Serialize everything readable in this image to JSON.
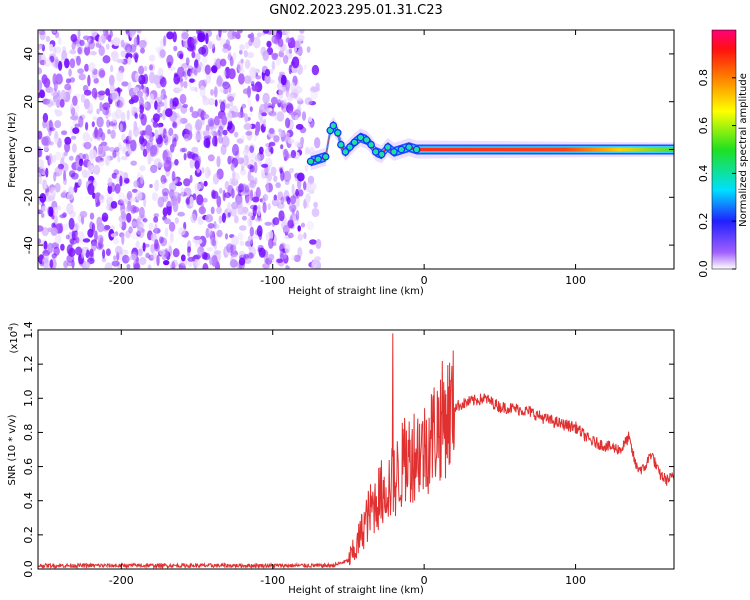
{
  "title": "GN02.2023.295.01.31.C23",
  "chart_data": [
    {
      "type": "heatmap",
      "xlabel": "Height of straight line (km)",
      "ylabel": "Frequency (Hz)",
      "xlim": [
        -255,
        165
      ],
      "ylim": [
        -50,
        50
      ],
      "x_ticks": [
        -200,
        -100,
        0,
        100
      ],
      "y_ticks": [
        -40,
        -20,
        0,
        20,
        40
      ],
      "noise_region_x": [
        -255,
        -75
      ],
      "carrier": {
        "steady_from_x": 0,
        "steady_frequency": 0,
        "scatter_points": [
          [
            -75,
            -5
          ],
          [
            -70,
            -4
          ],
          [
            -65,
            -3
          ],
          [
            -62,
            8
          ],
          [
            -60,
            10
          ],
          [
            -57,
            7
          ],
          [
            -55,
            2
          ],
          [
            -52,
            -1
          ],
          [
            -49,
            1
          ],
          [
            -46,
            3
          ],
          [
            -42,
            5
          ],
          [
            -38,
            4
          ],
          [
            -35,
            2
          ],
          [
            -32,
            -1
          ],
          [
            -28,
            -2
          ],
          [
            -24,
            1
          ],
          [
            -20,
            -1
          ],
          [
            -15,
            0
          ],
          [
            -10,
            1
          ],
          [
            -5,
            0
          ]
        ]
      },
      "colorbar": {
        "label": "Normalized spectral amplitude",
        "range": [
          0.0,
          1.0
        ],
        "ticks": [
          0.0,
          0.2,
          0.4,
          0.6,
          0.8
        ]
      }
    },
    {
      "type": "line",
      "xlabel": "Height of straight line (km)",
      "ylabel": "SNR (10 * v/v)",
      "y_multiplier": "(x10",
      "y_multiplier_exp": "4",
      "xlim": [
        -255,
        165
      ],
      "ylim": [
        0.0,
        1.4
      ],
      "x_ticks": [
        -200,
        -100,
        0,
        100
      ],
      "y_ticks": [
        0.0,
        0.2,
        0.4,
        0.6,
        0.8,
        1.0,
        1.2,
        1.4
      ],
      "series": [
        {
          "name": "SNR",
          "color": "#e03030",
          "x": [
            -255,
            -200,
            -150,
            -100,
            -70,
            -60,
            -50,
            -45,
            -40,
            -35,
            -30,
            -25,
            -20,
            -15,
            -10,
            -5,
            0,
            5,
            10,
            15,
            20,
            30,
            40,
            50,
            60,
            70,
            80,
            90,
            100,
            110,
            120,
            130,
            135,
            140,
            145,
            150,
            155,
            160,
            165
          ],
          "values": [
            0.02,
            0.02,
            0.02,
            0.02,
            0.02,
            0.02,
            0.05,
            0.12,
            0.25,
            0.35,
            0.42,
            0.48,
            0.5,
            0.6,
            0.65,
            0.7,
            0.7,
            0.78,
            0.85,
            0.9,
            0.95,
            0.98,
            1.0,
            0.95,
            0.94,
            0.92,
            0.88,
            0.85,
            0.83,
            0.75,
            0.72,
            0.7,
            0.77,
            0.6,
            0.58,
            0.68,
            0.56,
            0.52,
            0.54
          ]
        }
      ]
    }
  ]
}
